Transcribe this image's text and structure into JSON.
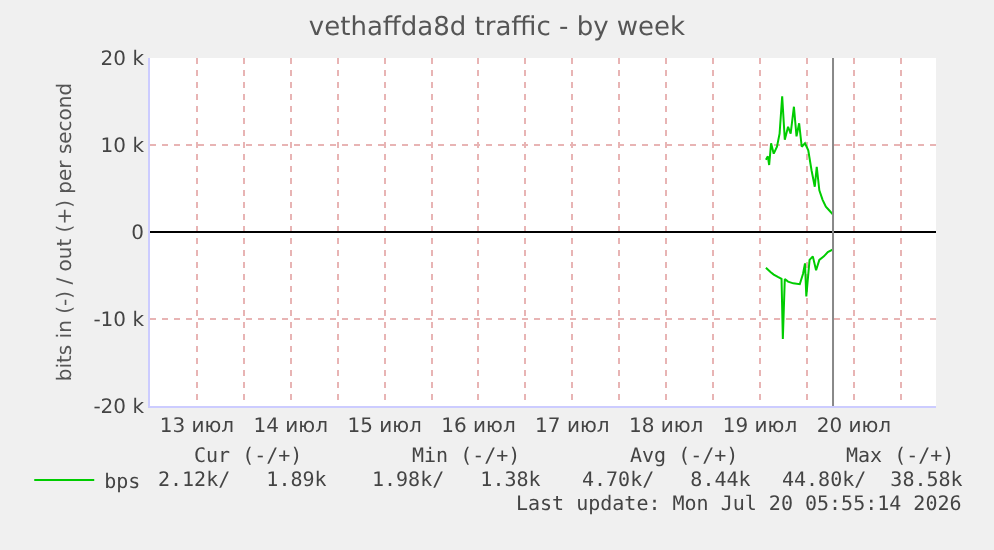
{
  "chart_data": {
    "type": "line",
    "title": "vethaffda8d traffic - by week",
    "ylabel": "bits in (-) / out (+) per second",
    "xlim": [
      "2026-07-13T00:00",
      "2026-07-21T09:00"
    ],
    "xticks": [
      {
        "value": "2026-07-13T00:00",
        "label": null
      },
      {
        "value": "2026-07-13T12:00",
        "label": "13 июл"
      },
      {
        "value": "2026-07-14T00:00",
        "label": null
      },
      {
        "value": "2026-07-14T12:00",
        "label": "14 июл"
      },
      {
        "value": "2026-07-15T00:00",
        "label": null
      },
      {
        "value": "2026-07-15T12:00",
        "label": "15 июл"
      },
      {
        "value": "2026-07-16T00:00",
        "label": null
      },
      {
        "value": "2026-07-16T12:00",
        "label": "16 июл"
      },
      {
        "value": "2026-07-17T00:00",
        "label": null
      },
      {
        "value": "2026-07-17T12:00",
        "label": "17 июл"
      },
      {
        "value": "2026-07-18T00:00",
        "label": null
      },
      {
        "value": "2026-07-18T12:00",
        "label": "18 июл"
      },
      {
        "value": "2026-07-19T00:00",
        "label": null
      },
      {
        "value": "2026-07-19T12:00",
        "label": "19 июл"
      },
      {
        "value": "2026-07-20T00:00",
        "label": null
      },
      {
        "value": "2026-07-20T12:00",
        "label": "20 июл"
      },
      {
        "value": "2026-07-21T00:00",
        "label": null
      }
    ],
    "ylim": [
      -20000,
      20000
    ],
    "yticks": [
      {
        "value": -20000,
        "label": "-20 k"
      },
      {
        "value": -10000,
        "label": "-10 k"
      },
      0,
      {
        "value": 10000,
        "label": "10 k"
      },
      {
        "value": 20000,
        "label": "20 k"
      }
    ],
    "grid": true,
    "legend": "bottom left",
    "marker": "none",
    "line_style": "solid",
    "series": [
      {
        "name": "bps",
        "color": "#00cc00",
        "x": [
          "2026-07-19T13:30",
          "2026-07-19T14:00",
          "2026-07-19T14:20",
          "2026-07-19T14:50",
          "2026-07-19T15:30",
          "2026-07-19T16:20",
          "2026-07-19T17:00",
          "2026-07-19T17:40",
          "2026-07-19T18:20",
          "2026-07-19T19:10",
          "2026-07-19T19:50",
          "2026-07-19T20:40",
          "2026-07-19T21:20",
          "2026-07-19T22:00",
          "2026-07-19T22:40",
          "2026-07-19T23:30",
          "2026-07-20T00:20",
          "2026-07-20T01:10",
          "2026-07-20T02:00",
          "2026-07-20T02:30",
          "2026-07-20T03:10",
          "2026-07-20T04:00",
          "2026-07-20T04:50",
          "2026-07-20T05:40",
          "2026-07-20T06:40"
        ],
        "values": [
          8300,
          8700,
          7700,
          10200,
          9000,
          9800,
          11300,
          15600,
          10600,
          12100,
          11300,
          14400,
          11000,
          12500,
          9800,
          10200,
          9400,
          7100,
          5200,
          7500,
          4800,
          3700,
          2900,
          2500,
          2000
        ]
      },
      {
        "color": "#00cc00",
        "x": [
          "2026-07-19T13:30",
          "2026-07-19T14:40",
          "2026-07-19T15:30",
          "2026-07-19T16:40",
          "2026-07-19T17:30",
          "2026-07-19T17:50",
          "2026-07-19T18:20",
          "2026-07-19T19:10",
          "2026-07-19T20:30",
          "2026-07-19T22:10",
          "2026-07-19T23:00",
          "2026-07-19T23:30",
          "2026-07-19T23:50",
          "2026-07-20T00:40",
          "2026-07-20T01:30",
          "2026-07-20T02:20",
          "2026-07-20T03:10",
          "2026-07-20T04:20",
          "2026-07-20T05:20",
          "2026-07-20T06:40"
        ],
        "values": [
          -4100,
          -4600,
          -4900,
          -5200,
          -5400,
          -12300,
          -5400,
          -5700,
          -5900,
          -6000,
          -4800,
          -3600,
          -7400,
          -3200,
          -2800,
          -4400,
          -3200,
          -2800,
          -2300,
          -2000
        ]
      }
    ],
    "ref_lines": [
      {
        "axis": "y",
        "value": 0,
        "color": "#000000"
      },
      {
        "axis": "x",
        "value": "2026-07-20T06:40",
        "color": "#888888"
      }
    ],
    "annotations": [
      "Cur (-/+)",
      "Min (-/+)",
      "Avg (-/+)",
      "Max (-/+)",
      "2.12k/   1.89k",
      "1.98k/   1.38k",
      "4.70k/   8.44k",
      "44.80k/  38.58k",
      "Last update: Mon Jul 20 05:55:14 2026"
    ]
  }
}
